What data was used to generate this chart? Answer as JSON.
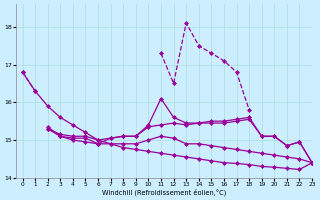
{
  "bg_color": "#cceeff",
  "line_color": "#990099",
  "grid_color": "#aadddd",
  "xlabel": "Windchill (Refroidissement éolien,°C)",
  "xlim": [
    -0.5,
    23
  ],
  "ylim": [
    14.0,
    18.6
  ],
  "yticks": [
    14,
    15,
    16,
    17,
    18
  ],
  "xticks": [
    0,
    1,
    2,
    3,
    4,
    5,
    6,
    7,
    8,
    9,
    10,
    11,
    12,
    13,
    14,
    15,
    16,
    17,
    18,
    19,
    20,
    21,
    22,
    23
  ],
  "series": [
    {
      "x": [
        0,
        1,
        2,
        3,
        4,
        5,
        6,
        7,
        8,
        9,
        10,
        11,
        12,
        13,
        14,
        15,
        16,
        17,
        18,
        19,
        20,
        21,
        22,
        23
      ],
      "y": [
        16.8,
        16.3,
        null,
        null,
        null,
        null,
        null,
        null,
        null,
        null,
        null,
        17.3,
        16.5,
        18.1,
        17.5,
        17.3,
        17.1,
        16.8,
        15.8,
        null,
        null,
        null,
        null,
        null
      ],
      "linestyle": "--",
      "marker": "D",
      "markersize": 2,
      "linewidth": 0.9
    },
    {
      "x": [
        0,
        1,
        2,
        3,
        4,
        5,
        6,
        7,
        8,
        9,
        10,
        11,
        12,
        13,
        14,
        15,
        16,
        17,
        18,
        19,
        20,
        21,
        22,
        23
      ],
      "y": [
        16.8,
        16.3,
        15.9,
        15.6,
        15.4,
        15.2,
        15.0,
        14.9,
        14.8,
        14.75,
        14.7,
        14.65,
        14.6,
        14.55,
        14.5,
        14.45,
        14.4,
        14.38,
        14.35,
        14.3,
        14.28,
        14.25,
        14.22,
        14.4
      ],
      "linestyle": "-",
      "marker": "D",
      "markersize": 2,
      "linewidth": 0.9
    },
    {
      "x": [
        0,
        1,
        2,
        3,
        4,
        5,
        6,
        7,
        8,
        9,
        10,
        11,
        12,
        13,
        14,
        15,
        16,
        17,
        18,
        19,
        20,
        21,
        22,
        23
      ],
      "y": [
        null,
        null,
        15.3,
        15.15,
        15.1,
        15.1,
        15.0,
        15.05,
        15.1,
        15.1,
        15.35,
        15.4,
        15.45,
        15.4,
        15.45,
        15.5,
        15.5,
        15.55,
        15.6,
        15.1,
        15.1,
        14.85,
        14.95,
        14.4
      ],
      "linestyle": "-",
      "marker": "D",
      "markersize": 2,
      "linewidth": 0.9
    },
    {
      "x": [
        0,
        1,
        2,
        3,
        4,
        5,
        6,
        7,
        8,
        9,
        10,
        11,
        12,
        13,
        14,
        15,
        16,
        17,
        18,
        19,
        20,
        21,
        22,
        23
      ],
      "y": [
        null,
        null,
        15.35,
        15.1,
        15.05,
        15.05,
        14.9,
        15.05,
        15.1,
        15.1,
        15.4,
        16.1,
        15.6,
        15.45,
        15.45,
        15.45,
        15.45,
        15.5,
        15.55,
        15.1,
        15.1,
        14.85,
        14.95,
        14.4
      ],
      "linestyle": "-",
      "marker": "D",
      "markersize": 2,
      "linewidth": 0.9
    },
    {
      "x": [
        0,
        1,
        2,
        3,
        4,
        5,
        6,
        7,
        8,
        9,
        10,
        11,
        12,
        13,
        14,
        15,
        16,
        17,
        18,
        19,
        20,
        21,
        22,
        23
      ],
      "y": [
        null,
        null,
        15.3,
        15.1,
        15.0,
        14.95,
        14.9,
        14.9,
        14.9,
        14.9,
        15.0,
        15.1,
        15.05,
        14.9,
        14.9,
        14.85,
        14.8,
        14.75,
        14.7,
        14.65,
        14.6,
        14.55,
        14.5,
        14.4
      ],
      "linestyle": "-",
      "marker": "D",
      "markersize": 2,
      "linewidth": 0.9
    }
  ]
}
